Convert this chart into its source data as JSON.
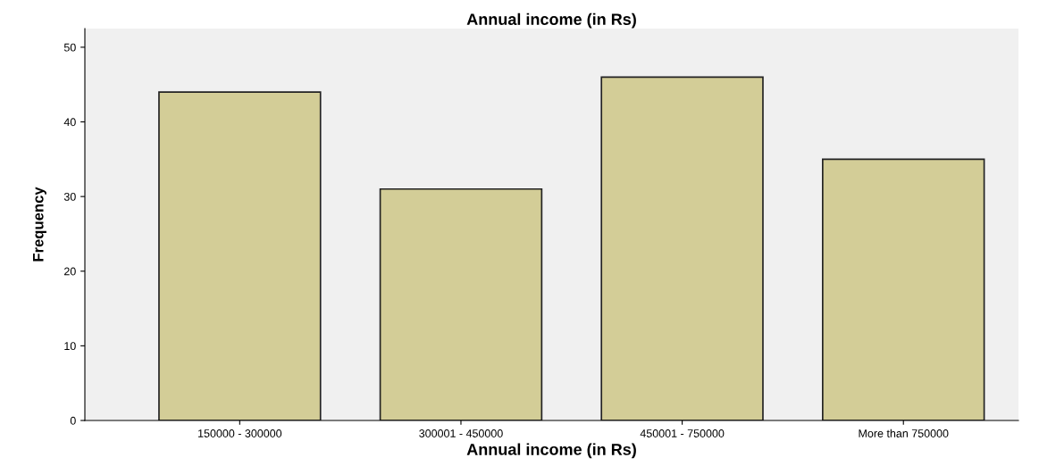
{
  "chart_data": {
    "type": "bar",
    "title": "Annual income (in Rs)",
    "xlabel": "Annual income (in Rs)",
    "ylabel": "Frequency",
    "categories": [
      "150000 - 300000",
      "300001 - 450000",
      "450001 - 750000",
      "More than 750000"
    ],
    "values": [
      44,
      31,
      46,
      35
    ],
    "color": "#d3cd97",
    "ylim": [
      0,
      52.5
    ],
    "yticks": [
      0,
      10,
      20,
      30,
      40,
      50
    ],
    "grid": false
  }
}
